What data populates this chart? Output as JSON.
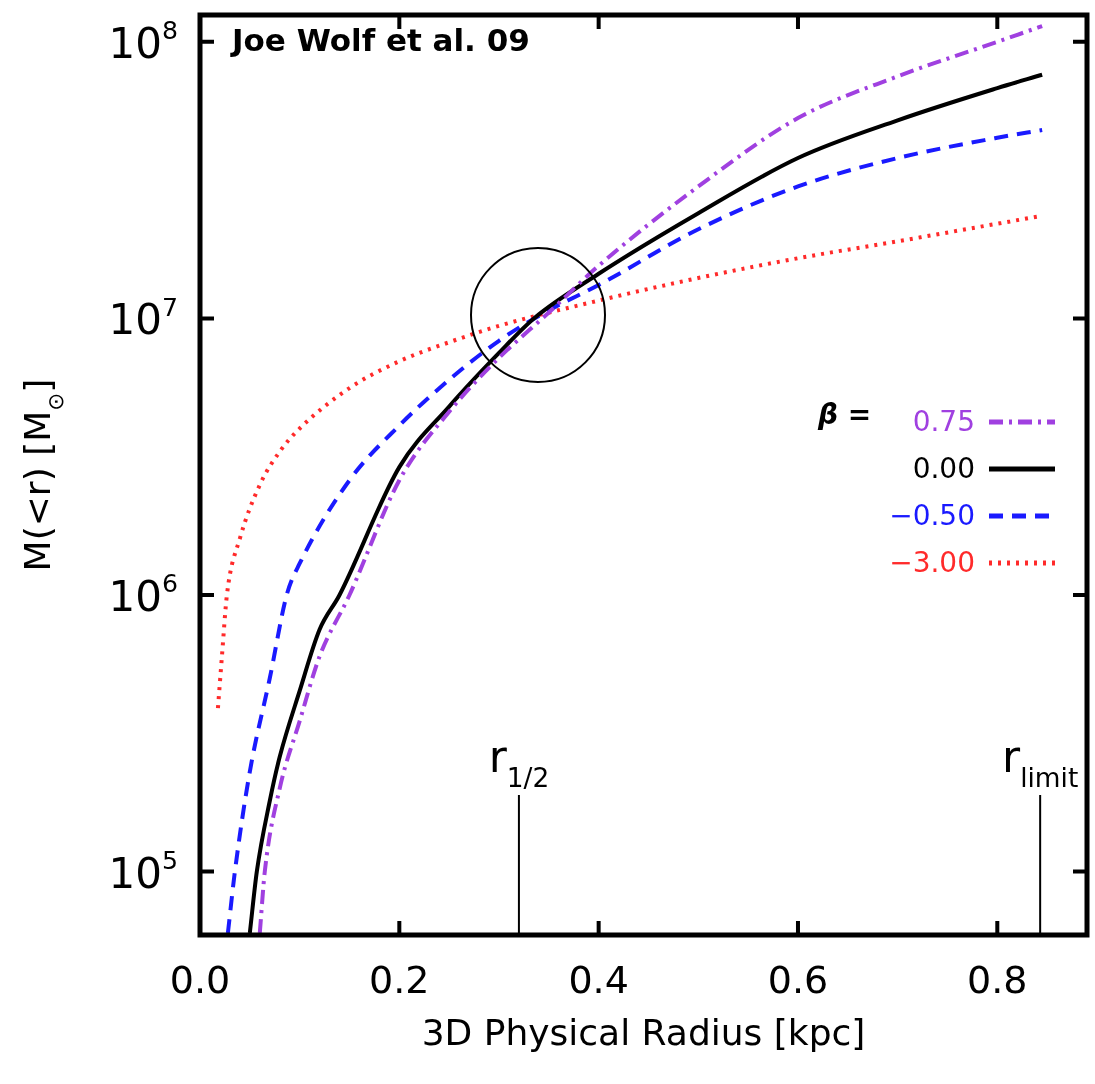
{
  "chart_data": {
    "type": "line",
    "xlabel": "3D Physical Radius [kpc]",
    "ylabel": "M(<r) [M$_{⊙}$]",
    "legend_title": "β =",
    "legend": "right",
    "grid": false,
    "log": "y",
    "marker": "none",
    "annotations": [
      "Joe Wolf et al. 09"
    ],
    "xlim": [
      0,
      0.89
    ],
    "xticks": [
      {
        "value": 0,
        "label": "0.0"
      },
      {
        "value": 0.2,
        "label": "0.2"
      },
      {
        "value": 0.4,
        "label": "0.4"
      },
      {
        "value": 0.6,
        "label": "0.6"
      },
      {
        "value": 0.8,
        "label": "0.8"
      }
    ],
    "ylim": [
      59000,
      125000000
    ],
    "yticks": [
      {
        "value": 100000,
        "label": "10$^{5}$"
      },
      {
        "value": 1000000,
        "label": "10$^{6}$"
      },
      {
        "value": 10000000,
        "label": "10$^{7}$"
      },
      {
        "value": 100000000,
        "label": "10$^{8}$"
      }
    ],
    "ref_lines": [
      {
        "axis": "x",
        "value": 0.32,
        "label": "r$_{1/2}$",
        "color": "#000000"
      },
      {
        "axis": "x",
        "value": 0.843,
        "label": "r$_{limit}$",
        "color": "#000000"
      }
    ],
    "series": [
      {
        "name": "0.75",
        "color": "#a040e0",
        "line_style": "dashdot",
        "x": [
          0.06,
          0.065,
          0.08,
          0.1,
          0.12,
          0.15,
          0.2,
          0.25,
          0.3,
          0.35,
          0.4,
          0.5,
          0.6,
          0.7,
          0.8,
          0.845
        ],
        "values": [
          60000,
          100000,
          200000,
          350000,
          600000,
          1000000,
          2600000,
          4600000,
          7200000,
          10500000,
          15500000,
          30000000,
          53000000,
          75000000,
          100000000,
          114000000
        ]
      },
      {
        "name": "0.00",
        "color": "#000000",
        "line_style": "solid",
        "x": [
          0.05,
          0.057,
          0.07,
          0.08,
          0.1,
          0.12,
          0.14,
          0.2,
          0.25,
          0.3,
          0.335,
          0.4,
          0.5,
          0.6,
          0.7,
          0.8,
          0.845
        ],
        "values": [
          60000,
          100000,
          180000,
          260000,
          450000,
          750000,
          1000000,
          2900000,
          4800000,
          7500000,
          10000000,
          14500000,
          24000000,
          38000000,
          52000000,
          68000000,
          76000000
        ]
      },
      {
        "name": "−0.50",
        "color": "#1a1aff",
        "line_style": "dashed",
        "x": [
          0.028,
          0.035,
          0.05,
          0.07,
          0.087,
          0.1,
          0.15,
          0.2,
          0.25,
          0.3,
          0.35,
          0.4,
          0.5,
          0.6,
          0.7,
          0.8,
          0.845
        ],
        "values": [
          60000,
          100000,
          230000,
          500000,
          1000000,
          1300000,
          2600000,
          4100000,
          6000000,
          8300000,
          10700000,
          13200000,
          21000000,
          30000000,
          38000000,
          45000000,
          48000000
        ]
      },
      {
        "name": "−3.00",
        "color": "#ff2a2a",
        "line_style": "dotted",
        "x": [
          0.018,
          0.022,
          0.027,
          0.04,
          0.06,
          0.08,
          0.1,
          0.15,
          0.2,
          0.25,
          0.3,
          0.4,
          0.5,
          0.6,
          0.7,
          0.8,
          0.845
        ],
        "values": [
          390000,
          600000,
          1000000,
          1600000,
          2500000,
          3300000,
          4000000,
          5600000,
          7000000,
          8200000,
          9400000,
          11600000,
          14000000,
          16500000,
          19000000,
          22000000,
          23500000
        ]
      }
    ]
  }
}
